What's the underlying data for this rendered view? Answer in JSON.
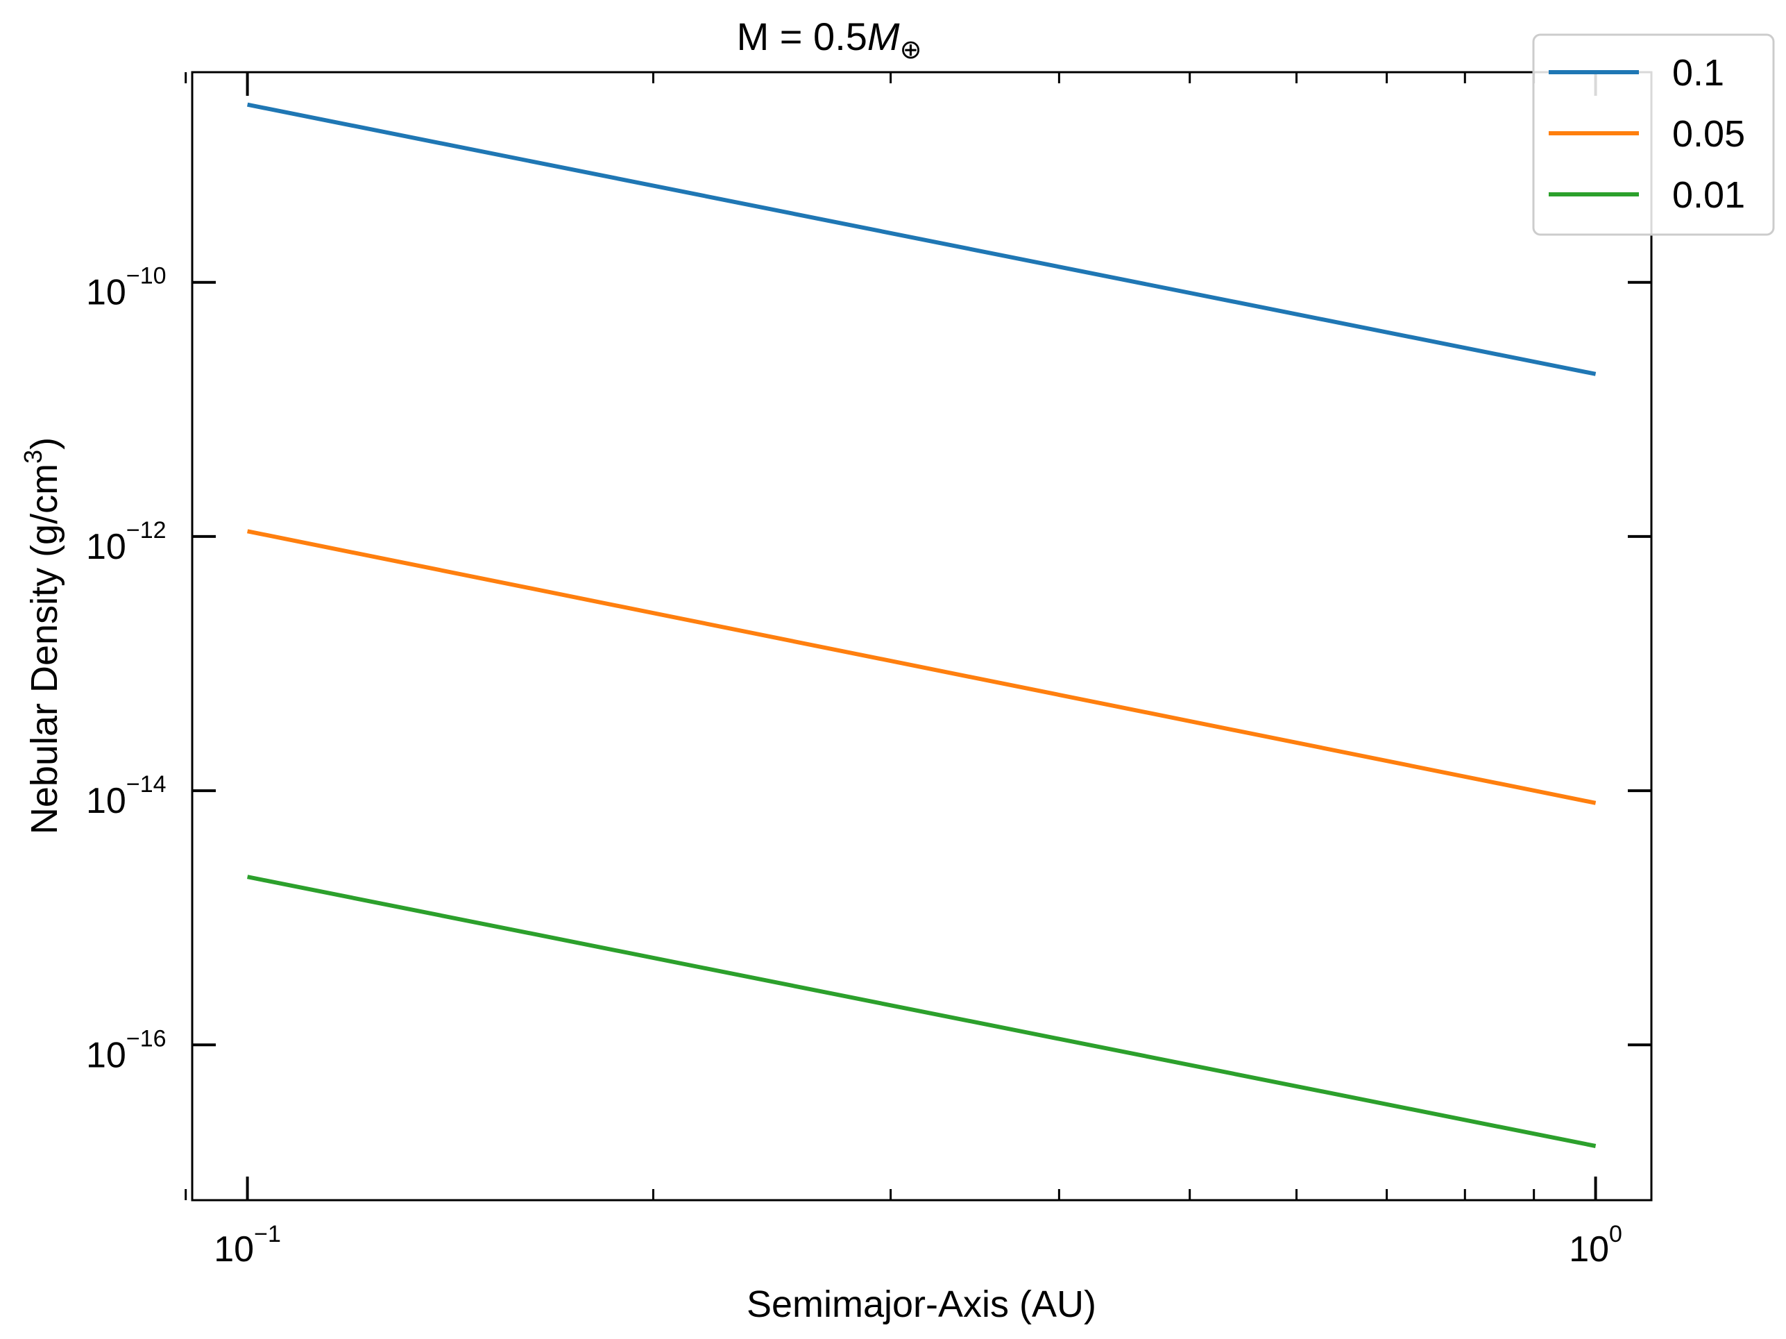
{
  "chart_data": {
    "type": "line",
    "title_parts": {
      "prefix": "M = 0.5",
      "symbol": "M",
      "subscript": "⊕"
    },
    "xlabel": "Semimajor-Axis (AU)",
    "ylabel_parts": {
      "prefix": "Nebular Density (g/cm",
      "superscript": "3",
      "suffix": ")"
    },
    "x_scale": "log",
    "y_scale": "log",
    "xlim": [
      0.091,
      1.1
    ],
    "ylim": [
      6e-18,
      4.5e-09
    ],
    "x_major_ticks": [
      {
        "value": 0.1,
        "base": "10",
        "exp": "−1"
      },
      {
        "value": 1.0,
        "base": "10",
        "exp": "0"
      }
    ],
    "x_minor_ticks": [
      0.09,
      0.2,
      0.3,
      0.4,
      0.5,
      0.6,
      0.7,
      0.8,
      0.9
    ],
    "y_major_ticks": [
      {
        "value": 1e-10,
        "base": "10",
        "exp": "−10"
      },
      {
        "value": 1e-12,
        "base": "10",
        "exp": "−12"
      },
      {
        "value": 1e-14,
        "base": "10",
        "exp": "−14"
      },
      {
        "value": 1e-16,
        "base": "10",
        "exp": "−16"
      }
    ],
    "grid": false,
    "legend_position": "top-right",
    "series": [
      {
        "name": "0.1",
        "color": "#1f77b4",
        "x": [
          0.1,
          1.0
        ],
        "y": [
          2.5e-09,
          1.9e-11
        ]
      },
      {
        "name": "0.05",
        "color": "#ff7f0e",
        "x": [
          0.1,
          1.0
        ],
        "y": [
          1.1e-12,
          8e-15
        ]
      },
      {
        "name": "0.01",
        "color": "#2ca02c",
        "x": [
          0.1,
          1.0
        ],
        "y": [
          2.1e-15,
          1.6e-17
        ]
      }
    ]
  }
}
